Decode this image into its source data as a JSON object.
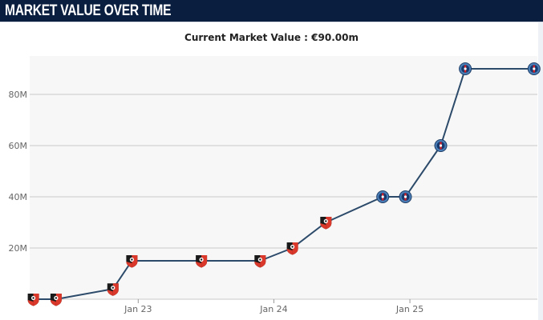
{
  "header": {
    "title": "MARKET VALUE OVER TIME"
  },
  "subtitle": "Current Market Value : €90.00m",
  "colors": {
    "header_bg": "#0a1e3f",
    "plot_bg": "#f7f7f7",
    "grid": "#c8c8c8",
    "line": "#2c4a6a",
    "club_rennes": "#d9382a",
    "club_psg": "#4b7fb8"
  },
  "chart_data": {
    "type": "line",
    "title": "Current Market Value : €90.00m",
    "xlabel": "",
    "ylabel": "",
    "y_unit": "M",
    "ylim": [
      0,
      95
    ],
    "yticks": [
      20,
      40,
      60,
      80
    ],
    "ytick_labels": [
      "20M",
      "40M",
      "60M",
      "80M"
    ],
    "xlim": [
      "2022-03-15",
      "2025-12-10"
    ],
    "xticks": [
      "2023-01-01",
      "2024-01-01",
      "2025-01-01"
    ],
    "xtick_labels": [
      "Jan 23",
      "Jan 24",
      "Jan 25"
    ],
    "grid": "horizontal",
    "legend": "none",
    "series": [
      {
        "points": [
          {
            "date": "2022-03-25",
            "value": 0,
            "club_icon": "rennes-crest-icon"
          },
          {
            "date": "2022-05-25",
            "value": 0,
            "club_icon": "rennes-crest-icon"
          },
          {
            "date": "2022-10-25",
            "value": 4,
            "club_icon": "rennes-crest-icon"
          },
          {
            "date": "2022-12-15",
            "value": 15,
            "club_icon": "rennes-crest-icon"
          },
          {
            "date": "2023-06-20",
            "value": 15,
            "club_icon": "rennes-crest-icon"
          },
          {
            "date": "2023-11-25",
            "value": 15,
            "club_icon": "rennes-crest-icon"
          },
          {
            "date": "2024-02-20",
            "value": 20,
            "club_icon": "rennes-crest-icon"
          },
          {
            "date": "2024-05-20",
            "value": 30,
            "club_icon": "rennes-crest-icon"
          },
          {
            "date": "2024-10-20",
            "value": 40,
            "club_icon": "psg-crest-icon"
          },
          {
            "date": "2024-12-20",
            "value": 40,
            "club_icon": "psg-crest-icon"
          },
          {
            "date": "2025-03-25",
            "value": 60,
            "club_icon": "psg-crest-icon"
          },
          {
            "date": "2025-05-30",
            "value": 90,
            "club_icon": "psg-crest-icon"
          },
          {
            "date": "2025-12-01",
            "value": 90,
            "club_icon": "psg-crest-icon"
          }
        ]
      }
    ]
  }
}
